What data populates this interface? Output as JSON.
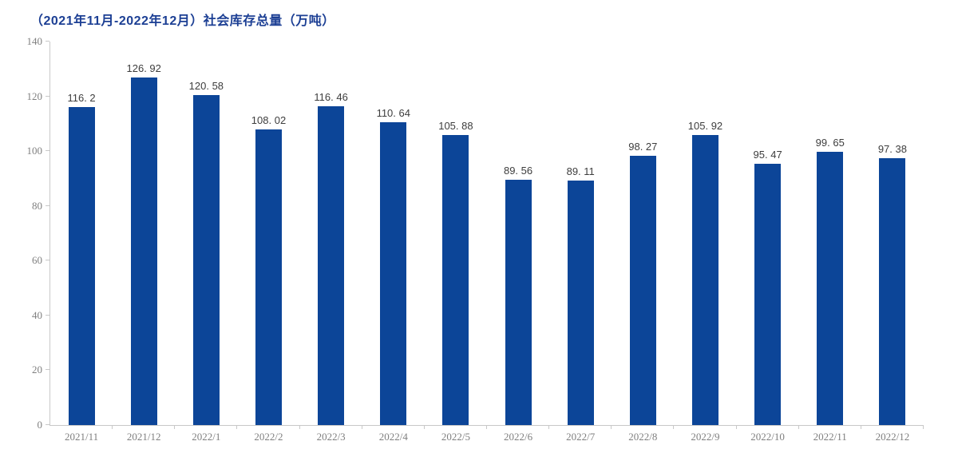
{
  "page": {
    "background": "#ffffff"
  },
  "chart_data": {
    "type": "bar",
    "title": "（2021年11月-2022年12月）社会库存总量（万吨）",
    "xlabel": "",
    "ylabel": "",
    "categories": [
      "2021/11",
      "2021/12",
      "2022/1",
      "2022/2",
      "2022/3",
      "2022/4",
      "2022/5",
      "2022/6",
      "2022/7",
      "2022/8",
      "2022/9",
      "2022/10",
      "2022/11",
      "2022/12"
    ],
    "values": [
      116.2,
      126.92,
      120.58,
      108.02,
      116.46,
      110.64,
      105.88,
      89.56,
      89.11,
      98.27,
      105.92,
      95.47,
      99.65,
      97.38
    ],
    "value_labels": [
      "116. 2",
      "126. 92",
      "120. 58",
      "108. 02",
      "116. 46",
      "110. 64",
      "105. 88",
      "89. 56",
      "89. 11",
      "98. 27",
      "105. 92",
      "95. 47",
      "99. 65",
      "97. 38"
    ],
    "ylim": [
      0,
      140
    ],
    "yticks": [
      0,
      20,
      40,
      60,
      80,
      100,
      120,
      140
    ],
    "grid": false,
    "legend_position": "none",
    "colors": {
      "bar": "#0c4598",
      "title": "#1c3f94",
      "value_label": "#3d3d3d",
      "axis_text": "#7f7f7f",
      "axis_line": "#c8c8c8"
    }
  }
}
